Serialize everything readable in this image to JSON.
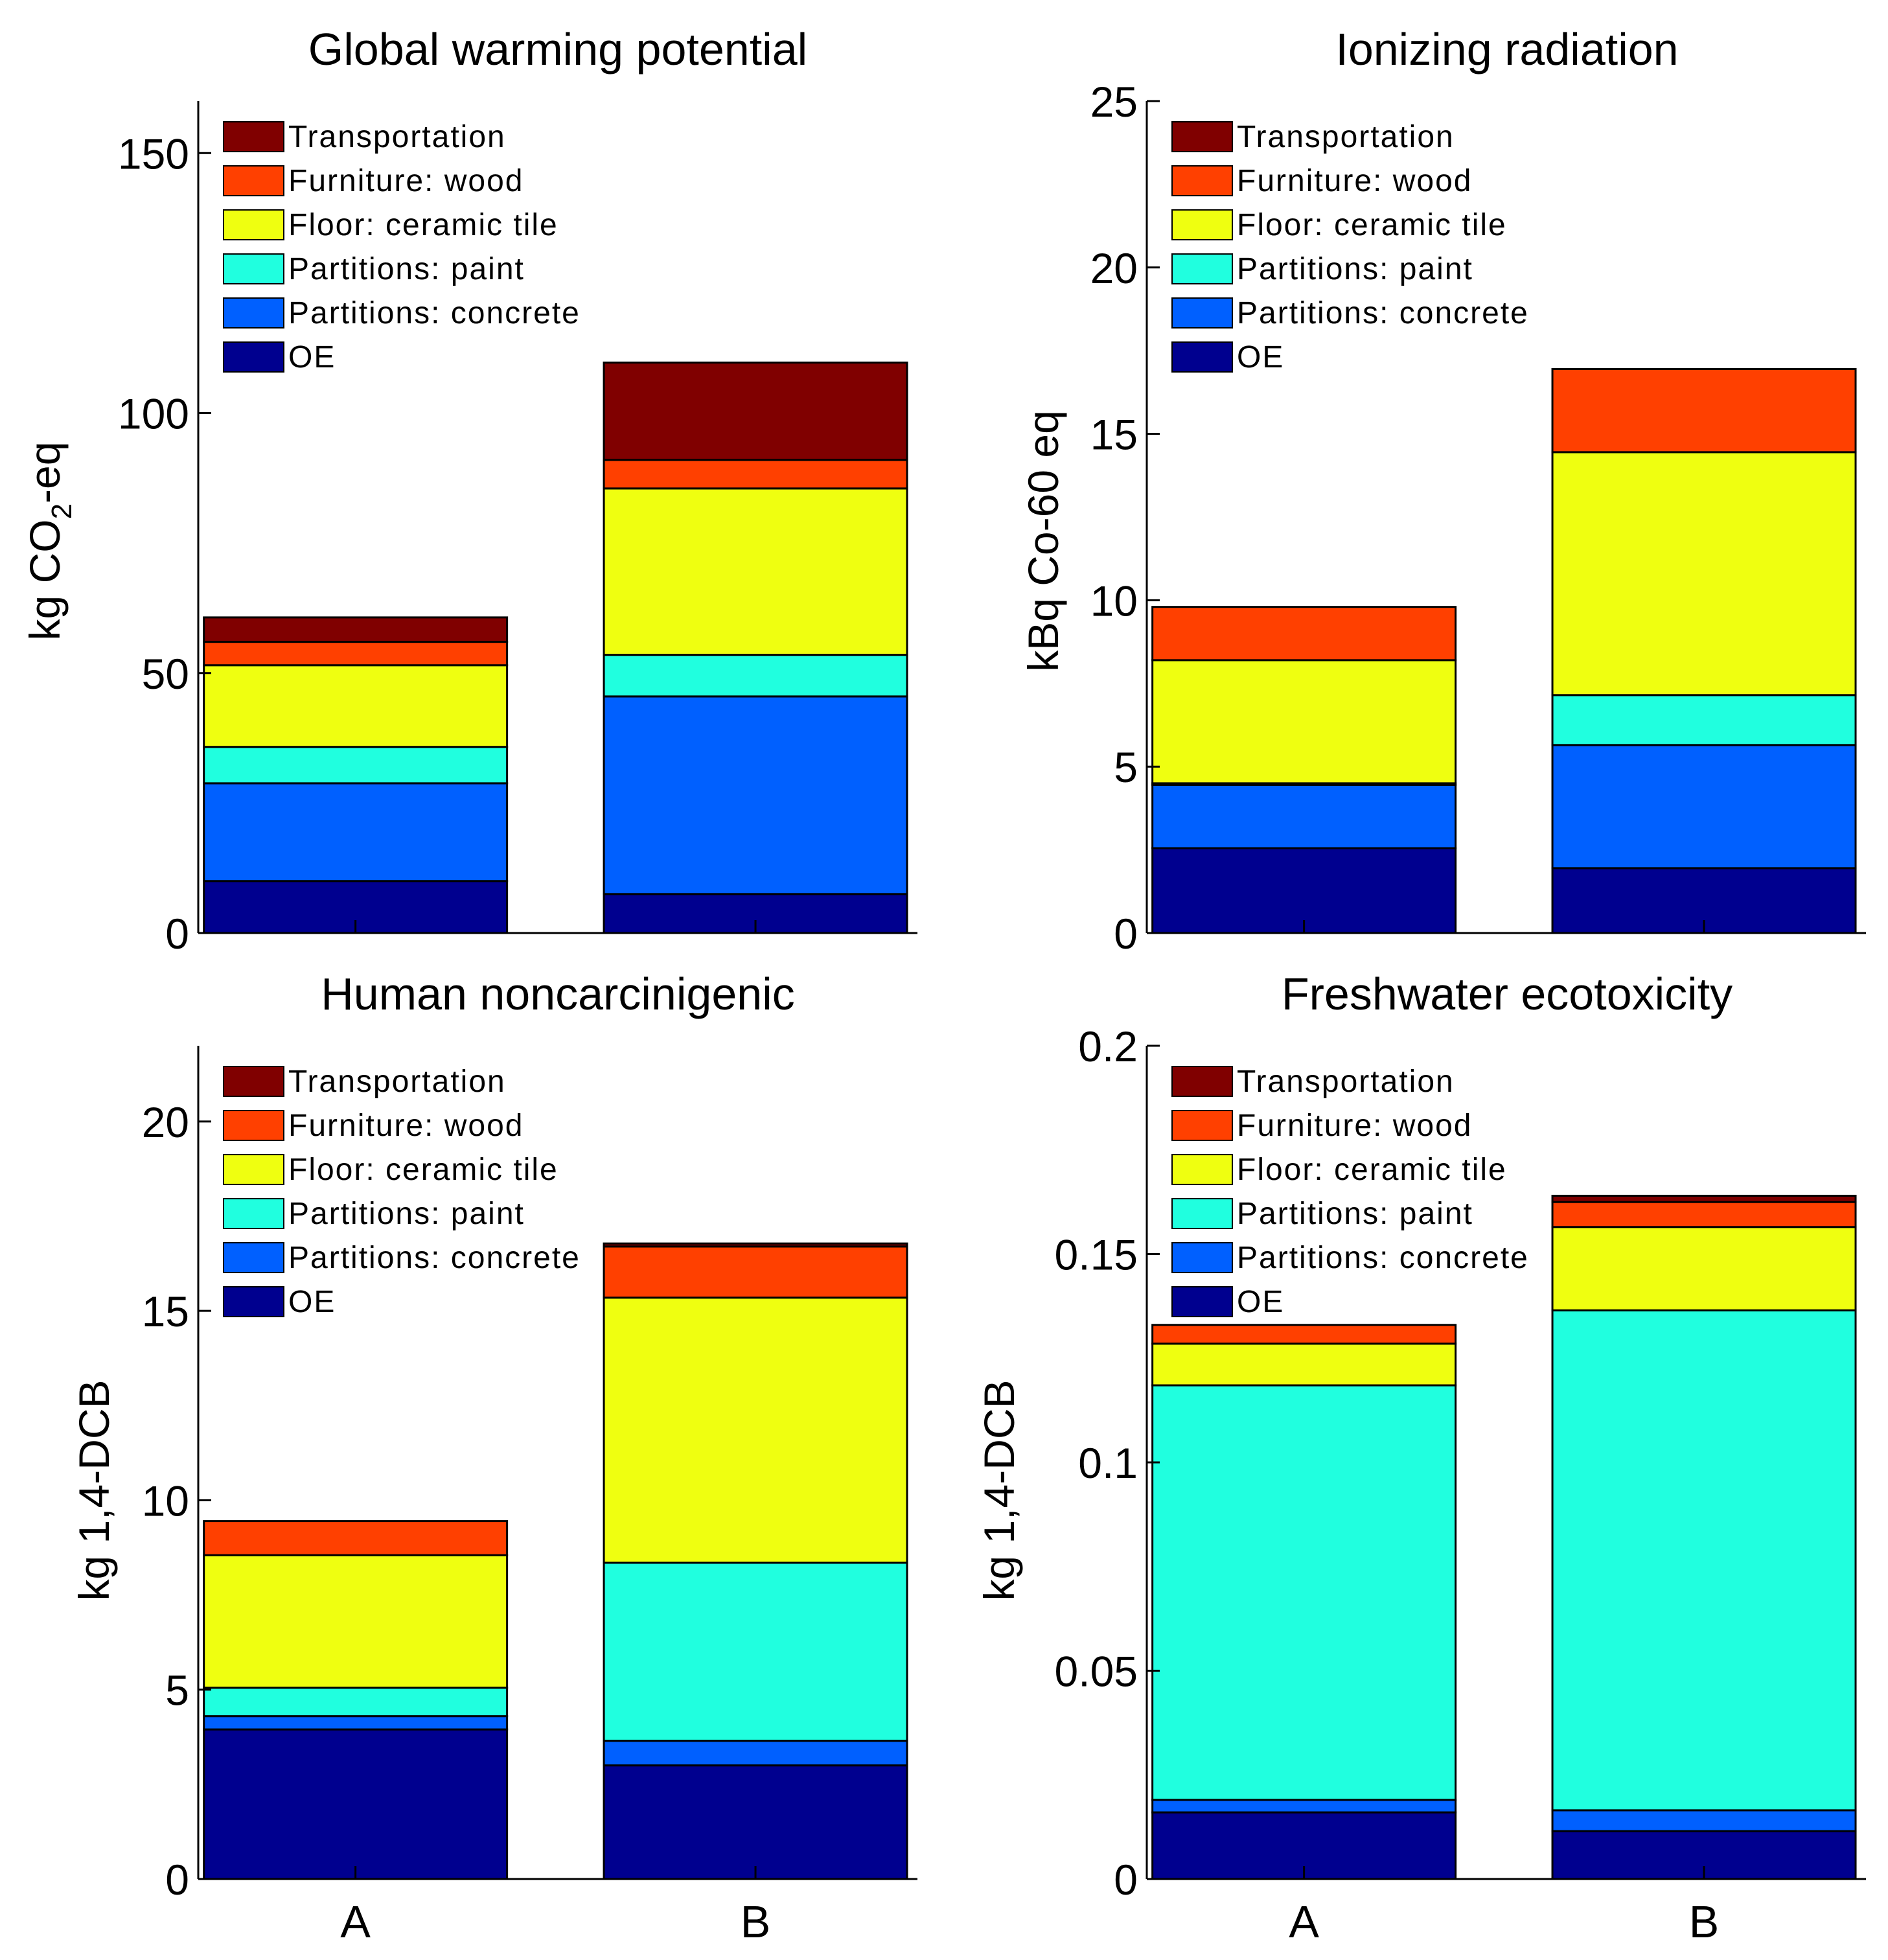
{
  "colors": {
    "OE": "#00008f",
    "Partitions: concrete": "#0060ff",
    "Partitions: paint": "#20ffdf",
    "Floor: ceramic tile": "#efff10",
    "Furniture: wood": "#ff4000",
    "Transportation": "#800000"
  },
  "legend_order": [
    "Transportation",
    "Furniture: wood",
    "Floor: ceramic tile",
    "Partitions: paint",
    "Partitions: concrete",
    "OE"
  ],
  "chart_data": [
    {
      "type": "bar",
      "stacked": true,
      "title": "Global warming potential",
      "ylabel": "kg CO2-eq",
      "ylabel_main": "kg CO",
      "ylabel_sub": "2",
      "ylabel_tail": "-eq",
      "ylim": [
        0,
        160
      ],
      "yticks": [
        0,
        50,
        100,
        150
      ],
      "ytick_labels": [
        "0",
        "50",
        "100",
        "150"
      ],
      "categories": [
        "A",
        "B"
      ],
      "legend_position": "top-left",
      "series": [
        {
          "name": "OE",
          "values": [
            10,
            7.5
          ]
        },
        {
          "name": "Partitions: concrete",
          "values": [
            18.8,
            38
          ]
        },
        {
          "name": "Partitions: paint",
          "values": [
            7,
            8
          ]
        },
        {
          "name": "Floor: ceramic tile",
          "values": [
            15.7,
            32
          ]
        },
        {
          "name": "Furniture: wood",
          "values": [
            4.5,
            5.5
          ]
        },
        {
          "name": "Transportation",
          "values": [
            4.7,
            18.7
          ]
        }
      ]
    },
    {
      "type": "bar",
      "stacked": true,
      "title": "Ionizing radiation",
      "ylabel": "kBq Co-60 eq",
      "ylim": [
        0,
        25
      ],
      "yticks": [
        0,
        5,
        10,
        15,
        20,
        25
      ],
      "ytick_labels": [
        "0",
        "5",
        "10",
        "15",
        "20",
        "25"
      ],
      "categories": [
        "A",
        "B"
      ],
      "legend_position": "top-left",
      "series": [
        {
          "name": "OE",
          "values": [
            2.55,
            1.95
          ]
        },
        {
          "name": "Partitions: concrete",
          "values": [
            1.9,
            3.7
          ]
        },
        {
          "name": "Partitions: paint",
          "values": [
            0.05,
            1.5
          ]
        },
        {
          "name": "Floor: ceramic tile",
          "values": [
            3.7,
            7.3
          ]
        },
        {
          "name": "Furniture: wood",
          "values": [
            1.6,
            2.5
          ]
        },
        {
          "name": "Transportation",
          "values": [
            0,
            0
          ]
        }
      ]
    },
    {
      "type": "bar",
      "stacked": true,
      "title": "Human noncarcinigenic",
      "ylabel": "kg 1,4-DCB",
      "ylim": [
        0,
        22
      ],
      "yticks": [
        0,
        5,
        10,
        15,
        20
      ],
      "ytick_labels": [
        "0",
        "5",
        "10",
        "15",
        "20"
      ],
      "categories": [
        "A",
        "B"
      ],
      "legend_position": "top-left",
      "series": [
        {
          "name": "OE",
          "values": [
            3.95,
            3
          ]
        },
        {
          "name": "Partitions: concrete",
          "values": [
            0.35,
            0.65
          ]
        },
        {
          "name": "Partitions: paint",
          "values": [
            0.75,
            4.7
          ]
        },
        {
          "name": "Floor: ceramic tile",
          "values": [
            3.5,
            7
          ]
        },
        {
          "name": "Furniture: wood",
          "values": [
            0.9,
            1.35
          ]
        },
        {
          "name": "Transportation",
          "values": [
            0,
            0.08
          ]
        }
      ]
    },
    {
      "type": "bar",
      "stacked": true,
      "title": "Freshwater ecotoxicity",
      "ylabel": "kg 1,4-DCB",
      "ylim": [
        0,
        0.2
      ],
      "yticks": [
        0,
        0.05,
        0.1,
        0.15,
        0.2
      ],
      "ytick_labels": [
        "0",
        "0.05",
        "0.1",
        "0.15",
        "0.2"
      ],
      "categories": [
        "A",
        "B"
      ],
      "legend_position": "top-left",
      "series": [
        {
          "name": "OE",
          "values": [
            0.016,
            0.0115
          ]
        },
        {
          "name": "Partitions: concrete",
          "values": [
            0.003,
            0.005
          ]
        },
        {
          "name": "Partitions: paint",
          "values": [
            0.0995,
            0.12
          ]
        },
        {
          "name": "Floor: ceramic tile",
          "values": [
            0.01,
            0.02
          ]
        },
        {
          "name": "Furniture: wood",
          "values": [
            0.0045,
            0.006
          ]
        },
        {
          "name": "Transportation",
          "values": [
            0,
            0.0015
          ]
        }
      ]
    }
  ]
}
